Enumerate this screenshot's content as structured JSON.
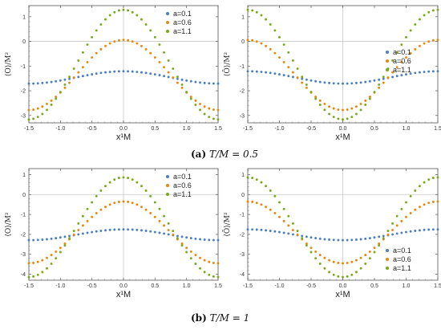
{
  "captions": [
    {
      "tag": "(a)",
      "text": "T/M = 0.5"
    },
    {
      "tag": "(b)",
      "text": "T/M = 1"
    }
  ],
  "colors": {
    "a=0.1": "#4a7fc0",
    "a=0.6": "#e8870a",
    "a=1.1": "#79a81c"
  },
  "chart_data": [
    {
      "type": "scatter",
      "panel": "top-left",
      "xlabel": "x¹M",
      "ylabel": "⟨O⟩/M²",
      "xlim": [
        -1.5,
        1.5
      ],
      "ylim": [
        -3.3,
        1.45
      ],
      "xticks": [
        -1.5,
        -1.0,
        -0.5,
        0.0,
        0.5,
        1.0,
        1.5
      ],
      "xtick_labels": [
        "-1.5",
        "-1.0",
        "-0.5",
        "0.0",
        "0.5",
        "1.0",
        "1.5"
      ],
      "yticks": [
        -3,
        -2,
        -1,
        0,
        1
      ],
      "ytick_labels": [
        "-3",
        "-2",
        "-1",
        "0",
        "1"
      ],
      "legend_position": "top-right",
      "series": [
        {
          "name": "a=0.1",
          "base": -1.46,
          "amp": 0.25
        },
        {
          "name": "a=0.6",
          "base": -1.36,
          "amp": 1.42
        },
        {
          "name": "a=1.1",
          "base": -0.94,
          "amp": 2.22
        }
      ]
    },
    {
      "type": "scatter",
      "panel": "top-right",
      "xlabel": "x¹M",
      "ylabel": "⟨Ō⟩/M²",
      "xlim": [
        -1.5,
        1.5
      ],
      "ylim": [
        -3.3,
        1.45
      ],
      "xticks": [
        -1.5,
        -1.0,
        -0.5,
        0.0,
        0.5,
        1.0,
        1.5
      ],
      "xtick_labels": [
        "-1.5",
        "-1.0",
        "-0.5",
        "0.0",
        "0.5",
        "1.0",
        "1.5"
      ],
      "yticks": [
        -3,
        -2,
        -1,
        0,
        1
      ],
      "ytick_labels": [
        "-3",
        "-2",
        "-1",
        "0",
        "1"
      ],
      "legend_position": "middle-right",
      "series": [
        {
          "name": "a=0.1",
          "base": -1.46,
          "amp": -0.25
        },
        {
          "name": "a=0.6",
          "base": -1.36,
          "amp": -1.42
        },
        {
          "name": "a=1.1",
          "base": -0.94,
          "amp": -2.22
        }
      ]
    },
    {
      "type": "scatter",
      "panel": "bottom-left",
      "xlabel": "x¹M",
      "ylabel": "⟨O⟩/M²",
      "xlim": [
        -1.5,
        1.5
      ],
      "ylim": [
        -4.3,
        1.3
      ],
      "xticks": [
        -1.5,
        -1.0,
        -0.5,
        0.0,
        0.5,
        1.0,
        1.5
      ],
      "xtick_labels": [
        "-1.5",
        "-1.0",
        "-0.5",
        "0.0",
        "0.5",
        "1.0",
        "1.5"
      ],
      "yticks": [
        -4,
        -3,
        -2,
        -1,
        0,
        1
      ],
      "ytick_labels": [
        "-4",
        "-3",
        "-2",
        "-1",
        "0",
        "1"
      ],
      "legend_position": "top-right",
      "series": [
        {
          "name": "a=0.1",
          "base": -2.02,
          "amp": 0.27
        },
        {
          "name": "a=0.6",
          "base": -1.9,
          "amp": 1.55
        },
        {
          "name": "a=1.1",
          "base": -1.64,
          "amp": 2.5
        }
      ]
    },
    {
      "type": "scatter",
      "panel": "bottom-right",
      "xlabel": "x¹M",
      "ylabel": "⟨Ō⟩/M²",
      "xlim": [
        -1.5,
        1.5
      ],
      "ylim": [
        -4.3,
        1.3
      ],
      "xticks": [
        -1.5,
        -1.0,
        -0.5,
        0.0,
        0.5,
        1.0,
        1.5
      ],
      "xtick_labels": [
        "-1.5",
        "-1.0",
        "-0.5",
        "0.0",
        "0.5",
        "1.0",
        "1.5"
      ],
      "yticks": [
        -4,
        -3,
        -2,
        -1,
        0,
        1
      ],
      "ytick_labels": [
        "-4",
        "-3",
        "-2",
        "-1",
        "0",
        "1"
      ],
      "legend_position": "bottom-right",
      "series": [
        {
          "name": "a=0.1",
          "base": -2.02,
          "amp": -0.27
        },
        {
          "name": "a=0.6",
          "base": -1.9,
          "amp": -1.55
        },
        {
          "name": "a=1.1",
          "base": -1.64,
          "amp": -2.5
        }
      ]
    }
  ]
}
